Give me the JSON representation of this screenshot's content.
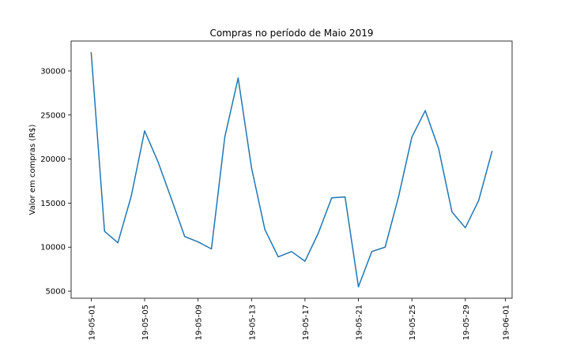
{
  "chart_data": {
    "type": "line",
    "title": "Compras no período de Maio 2019",
    "xlabel": "",
    "ylabel": "Valor em compras (R$)",
    "x_range": [
      "2019-04-29.5",
      "2019-06-01.5"
    ],
    "ylim": [
      4200,
      33400
    ],
    "grid": false,
    "line_color": "#1f77b4",
    "x_ticks": [
      {
        "date": "2019-05-01",
        "label": "19-05-01"
      },
      {
        "date": "2019-05-05",
        "label": "19-05-05"
      },
      {
        "date": "2019-05-09",
        "label": "19-05-09"
      },
      {
        "date": "2019-05-13",
        "label": "19-05-13"
      },
      {
        "date": "2019-05-17",
        "label": "19-05-17"
      },
      {
        "date": "2019-05-21",
        "label": "19-05-21"
      },
      {
        "date": "2019-05-25",
        "label": "19-05-25"
      },
      {
        "date": "2019-05-29",
        "label": "19-05-29"
      },
      {
        "date": "2019-06-01",
        "label": "19-06-01"
      }
    ],
    "y_ticks": [
      {
        "value": 5000,
        "label": "5000"
      },
      {
        "value": 10000,
        "label": "10000"
      },
      {
        "value": 15000,
        "label": "15000"
      },
      {
        "value": 20000,
        "label": "20000"
      },
      {
        "value": 25000,
        "label": "25000"
      },
      {
        "value": 30000,
        "label": "30000"
      }
    ],
    "series": [
      {
        "x": [
          "2019-05-01",
          "2019-05-02",
          "2019-05-03",
          "2019-05-04",
          "2019-05-05",
          "2019-05-06",
          "2019-05-07",
          "2019-05-08",
          "2019-05-09",
          "2019-05-10",
          "2019-05-11",
          "2019-05-12",
          "2019-05-13",
          "2019-05-14",
          "2019-05-15",
          "2019-05-16",
          "2019-05-17",
          "2019-05-18",
          "2019-05-19",
          "2019-05-20",
          "2019-05-21",
          "2019-05-22",
          "2019-05-23",
          "2019-05-24",
          "2019-05-25",
          "2019-05-26",
          "2019-05-27",
          "2019-05-28",
          "2019-05-29",
          "2019-05-30",
          "2019-05-31"
        ],
        "y": [
          32100,
          11800,
          10500,
          15800,
          23200,
          19700,
          15500,
          11200,
          10600,
          9800,
          22500,
          29200,
          19000,
          12000,
          8900,
          9500,
          8400,
          11600,
          15600,
          15700,
          5500,
          9500,
          10000,
          15700,
          22500,
          25500,
          21200,
          14000,
          12200,
          15300,
          20900
        ]
      }
    ]
  }
}
